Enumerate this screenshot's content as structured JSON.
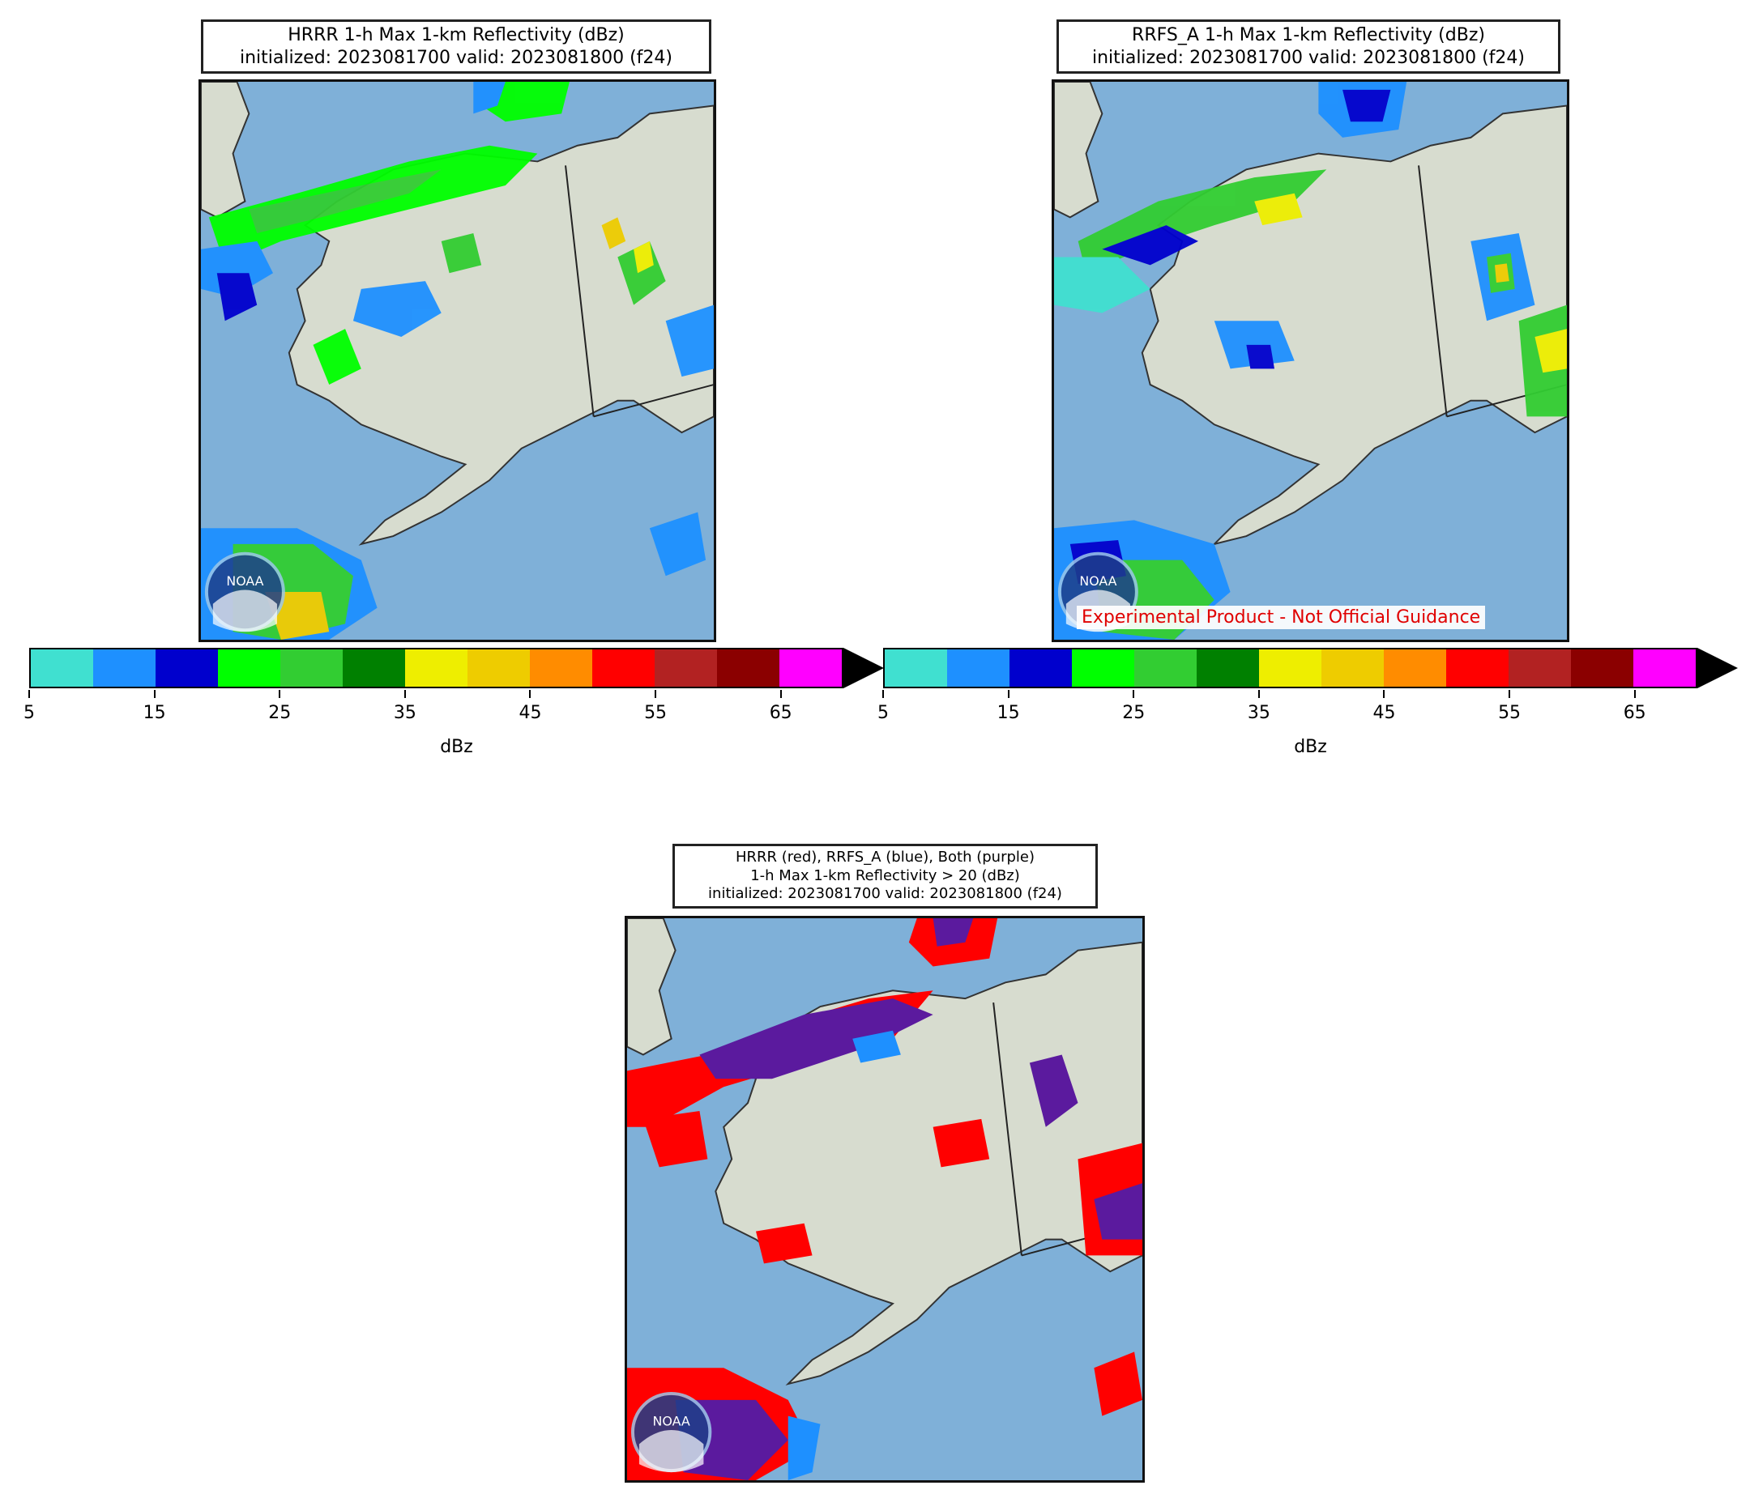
{
  "panels": {
    "hrrr": {
      "title_line1": "HRRR 1-h Max 1-km Reflectivity (dBz)",
      "title_line2": "initialized: 2023081700 valid: 2023081800 (f24)"
    },
    "rrfs": {
      "title_line1": "RRFS_A 1-h Max 1-km Reflectivity (dBz)",
      "title_line2": "initialized: 2023081700 valid: 2023081800 (f24)",
      "disclaimer": "Experimental Product - Not Official Guidance"
    },
    "compare": {
      "title_line1": "HRRR (red), RRFS_A (blue), Both (purple)",
      "title_line2": "1-h Max 1-km Reflectivity > 20 (dBz)",
      "title_line3": "initialized: 2023081700 valid: 2023081800 (f24)"
    }
  },
  "colorbar": {
    "label": "dBz",
    "ticks": [
      "5",
      "15",
      "25",
      "35",
      "45",
      "55",
      "65"
    ],
    "colors": [
      "#40e0d0",
      "#1e90ff",
      "#0000cd",
      "#00ff00",
      "#32cd32",
      "#008000",
      "#eeee00",
      "#eecc00",
      "#ff8c00",
      "#ff0000",
      "#b22222",
      "#8b0000",
      "#ff00ff"
    ],
    "extend": "max"
  },
  "compare_colors": {
    "hrrr": "#ff0000",
    "rrfs": "#1e90ff",
    "both": "#5b1a9e"
  },
  "map_colors": {
    "ocean": "#7fb0d8",
    "land": "#d7dccf",
    "border": "#333333"
  },
  "logo_text": "NOAA"
}
